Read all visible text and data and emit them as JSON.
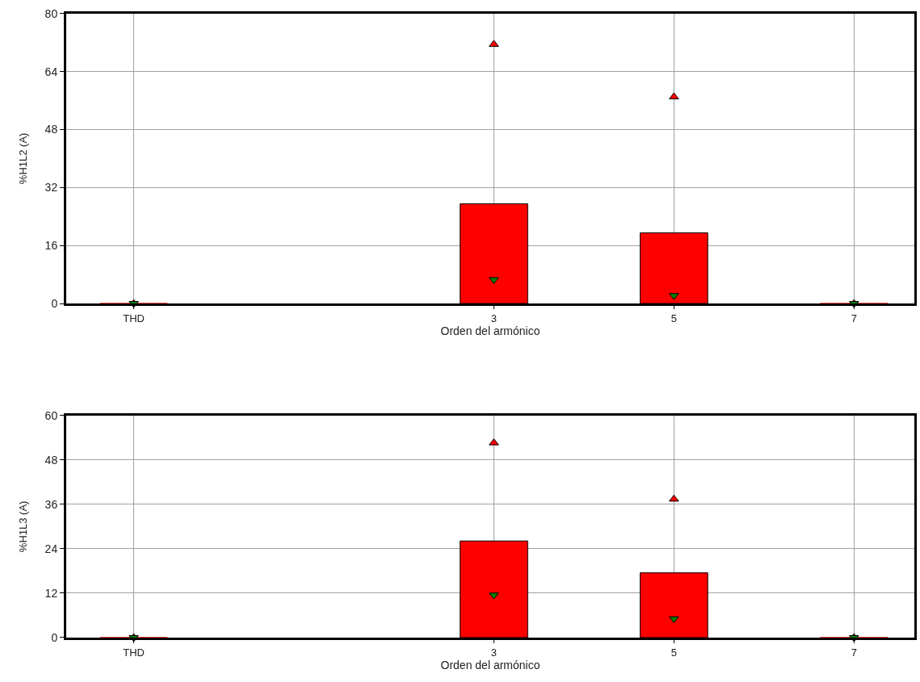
{
  "chart_data": [
    {
      "type": "bar",
      "xlabel": "Orden del armónico",
      "ylabel": "%H1L2 (A)",
      "categories": [
        "THD",
        null,
        null,
        null,
        "3",
        null,
        "5",
        null,
        "7"
      ],
      "ylim": [
        0,
        80
      ],
      "yticks": [
        0,
        16,
        32,
        48,
        64,
        80
      ],
      "grid": true,
      "legend": false,
      "series": [
        {
          "color": "#ff0000",
          "values": [
            0,
            null,
            null,
            null,
            27.5,
            null,
            19.5,
            null,
            0
          ]
        },
        {
          "type": "scatter",
          "marker": "triangle",
          "color": "#ff0000",
          "values": [
            0,
            null,
            null,
            null,
            71.5,
            null,
            57,
            null,
            0
          ]
        },
        {
          "type": "scatter",
          "marker": "triangle-down",
          "color": "#008000",
          "values": [
            0,
            null,
            null,
            null,
            6.6,
            null,
            2.2,
            null,
            0
          ]
        }
      ]
    },
    {
      "type": "bar",
      "xlabel": "Orden del armónico",
      "ylabel": "%H1L3 (A)",
      "categories": [
        "THD",
        null,
        null,
        null,
        "3",
        null,
        "5",
        null,
        "7"
      ],
      "ylim": [
        0,
        60
      ],
      "yticks": [
        0,
        12,
        24,
        36,
        48,
        60
      ],
      "grid": true,
      "legend": false,
      "series": [
        {
          "color": "#ff0000",
          "values": [
            0,
            null,
            null,
            null,
            26.1,
            null,
            17.5,
            null,
            0
          ]
        },
        {
          "type": "scatter",
          "marker": "triangle",
          "color": "#ff0000",
          "values": [
            0,
            null,
            null,
            null,
            52.6,
            null,
            37.4,
            null,
            0
          ]
        },
        {
          "type": "scatter",
          "marker": "triangle-down",
          "color": "#008000",
          "values": [
            0,
            null,
            null,
            null,
            11.5,
            null,
            5.1,
            null,
            0
          ]
        }
      ]
    }
  ]
}
